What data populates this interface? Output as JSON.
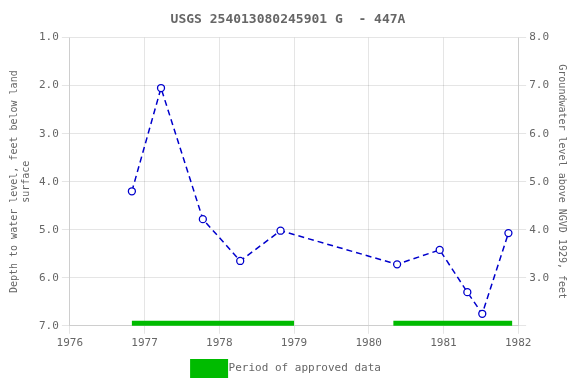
{
  "chart_data": {
    "type": "line",
    "title": "USGS 254013080245901 G  - 447A",
    "ylabel": "Depth to water level, feet below land\nsurface",
    "y2label": "Groundwater level above NGVD 1929, feet",
    "x": [
      1976.83,
      1977.22,
      1977.78,
      1978.28,
      1978.82,
      1980.38,
      1980.95,
      1981.32,
      1981.52,
      1981.87
    ],
    "series": [
      {
        "values": [
          4.2,
          2.05,
          4.78,
          5.65,
          5.02,
          5.72,
          5.42,
          6.3,
          6.75,
          5.07
        ],
        "color": "#0000CC",
        "line_style": "dashed",
        "marker": "circle"
      }
    ],
    "periods": {
      "name": "Period of approved data",
      "color": "#00BB00",
      "ranges": [
        [
          1976.83,
          1979.0
        ],
        [
          1980.33,
          1981.92
        ]
      ]
    },
    "xlim": [
      1976,
      1982
    ],
    "xticks": [
      1976,
      1977,
      1978,
      1979,
      1980,
      1981,
      1982
    ],
    "ylim": [
      7.0,
      1.0
    ],
    "yticks": [
      {
        "value": 1.0,
        "label": "1.0"
      },
      {
        "value": 2.0,
        "label": "2.0"
      },
      {
        "value": 3.0,
        "label": "3.0"
      },
      {
        "value": 4.0,
        "label": "4.0"
      },
      {
        "value": 5.0,
        "label": "5.0"
      },
      {
        "value": 6.0,
        "label": "6.0"
      },
      {
        "value": 7.0,
        "label": "7.0"
      }
    ],
    "y2lim": [
      2.0,
      8.0
    ],
    "y2ticks": [
      {
        "value": 8.0,
        "label": "8.0"
      },
      {
        "value": 7.0,
        "label": "7.0"
      },
      {
        "value": 6.0,
        "label": "6.0"
      },
      {
        "value": 5.0,
        "label": "5.0"
      },
      {
        "value": 4.0,
        "label": "4.0"
      },
      {
        "value": 3.0,
        "label": "3.0"
      }
    ],
    "grid": true,
    "legend": "bottom"
  }
}
